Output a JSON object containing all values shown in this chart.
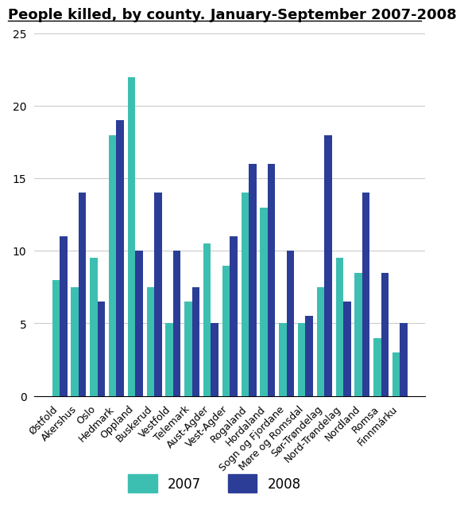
{
  "title": "People killed, by county. January-September 2007-2008",
  "categories": [
    "Østfold",
    "Akershus",
    "Oslo",
    "Hedmark",
    "Oppland",
    "Buskerud",
    "Vestfold",
    "Telemark",
    "Aust-Agder",
    "Vest-Agder",
    "Rogaland",
    "Hordaland",
    "Sogn og Fjordane",
    "Møre og Romsdal",
    "Sør-Trøndelag",
    "Nord-Trøndelag",
    "Nordland",
    "Romsa",
    "Finnmárku"
  ],
  "values_2007": [
    8,
    7.5,
    9.5,
    18,
    22,
    7.5,
    5,
    6.5,
    10.5,
    9,
    14,
    13,
    5,
    5,
    7.5,
    9.5,
    8.5,
    4,
    3
  ],
  "values_2008": [
    11,
    14,
    6.5,
    19,
    10,
    14,
    10,
    7.5,
    5,
    11,
    16,
    16,
    10,
    5.5,
    18,
    6.5,
    14,
    8.5,
    5
  ],
  "color_2007": "#3cbfb0",
  "color_2008": "#2b3d96",
  "ylim": [
    0,
    25
  ],
  "yticks": [
    0,
    5,
    10,
    15,
    20,
    25
  ],
  "legend_2007": "2007",
  "legend_2008": "2008",
  "background_color": "#ffffff",
  "grid_color": "#cccccc",
  "title_fontsize": 13,
  "bar_width": 0.4
}
